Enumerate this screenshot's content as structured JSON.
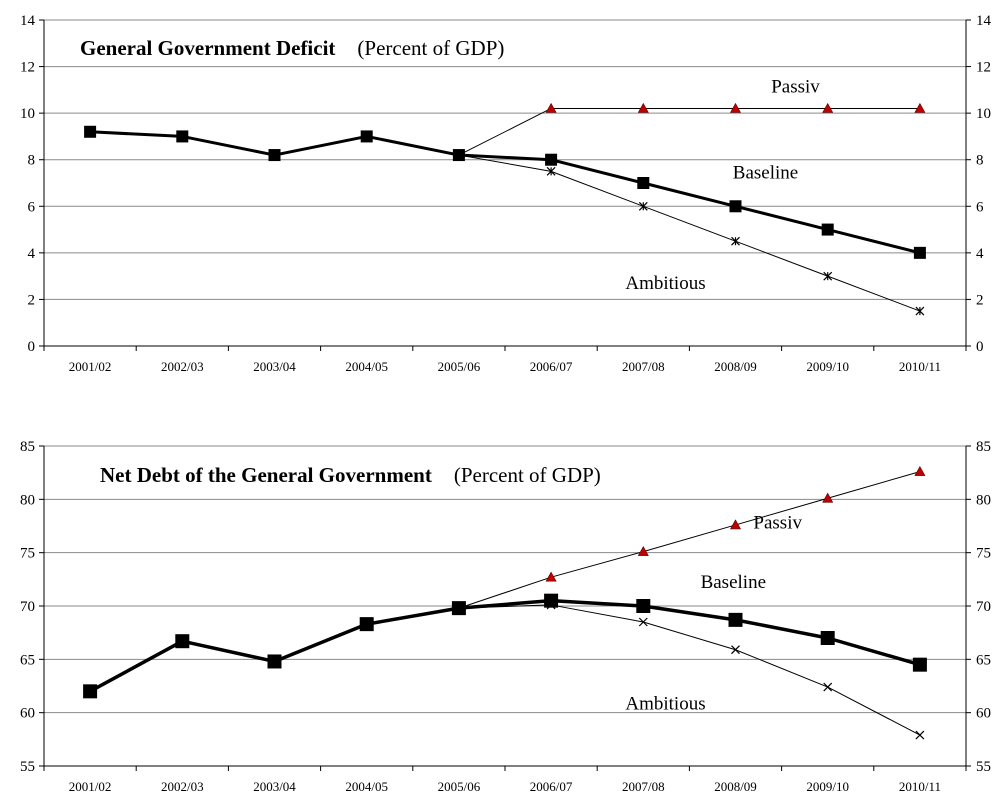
{
  "chart_data": [
    {
      "type": "line",
      "title": "General Government Deficit",
      "subtitle": "(Percent of GDP)",
      "categories": [
        "2001/02",
        "2002/03",
        "2003/04",
        "2004/05",
        "2005/06",
        "2006/07",
        "2007/08",
        "2008/09",
        "2009/10",
        "2010/11"
      ],
      "ylim": [
        0,
        14
      ],
      "yticks": [
        0,
        2,
        4,
        6,
        8,
        10,
        12,
        14
      ],
      "ylabel": "",
      "xlabel": "",
      "secondary_y_axis": true,
      "grid": "horizontal",
      "legend": "inline labels",
      "series": [
        {
          "name": "Passiv",
          "values": [
            9.2,
            9.0,
            8.2,
            9.0,
            8.2,
            10.2,
            10.2,
            10.2,
            10.2,
            10.2
          ],
          "color": "#000000",
          "marker": "triangle",
          "marker_color": "#c00000"
        },
        {
          "name": "Baseline",
          "values": [
            9.2,
            9.0,
            8.2,
            9.0,
            8.2,
            8.0,
            7.0,
            6.0,
            5.0,
            4.0
          ],
          "color": "#000000",
          "marker": "square"
        },
        {
          "name": "Ambitious",
          "values": [
            9.2,
            9.0,
            8.2,
            9.0,
            8.2,
            7.5,
            6.0,
            4.5,
            3.0,
            1.5
          ],
          "color": "#000000",
          "marker": "asterisk"
        }
      ]
    },
    {
      "type": "line",
      "title": "Net Debt of the General Government",
      "subtitle": "(Percent of GDP)",
      "categories": [
        "2001/02",
        "2002/03",
        "2003/04",
        "2004/05",
        "2005/06",
        "2006/07",
        "2007/08",
        "2008/09",
        "2009/10",
        "2010/11"
      ],
      "ylim": [
        55,
        85
      ],
      "yticks": [
        55,
        60,
        65,
        70,
        75,
        80,
        85
      ],
      "ylabel": "",
      "xlabel": "",
      "secondary_y_axis": true,
      "grid": "horizontal",
      "legend": "inline labels",
      "series": [
        {
          "name": "Passiv",
          "values": [
            62.0,
            66.7,
            64.8,
            68.3,
            69.8,
            72.7,
            75.1,
            77.6,
            80.1,
            82.6
          ],
          "color": "#000000",
          "marker": "triangle",
          "marker_color": "#c00000"
        },
        {
          "name": "Baseline",
          "values": [
            62.0,
            66.7,
            64.8,
            68.3,
            69.8,
            70.5,
            70.0,
            68.7,
            67.0,
            64.5
          ],
          "color": "#000000",
          "marker": "square"
        },
        {
          "name": "Ambitious",
          "values": [
            62.0,
            66.7,
            64.8,
            68.3,
            69.8,
            70.1,
            68.5,
            65.9,
            62.4,
            57.9
          ],
          "color": "#000000",
          "marker": "x"
        }
      ]
    }
  ]
}
